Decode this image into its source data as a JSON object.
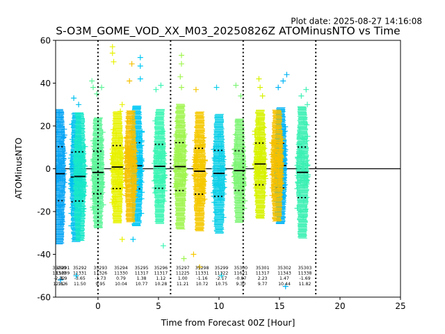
{
  "chart_data": {
    "type": "scatter",
    "plot_date": "Plot date: 2025-08-27 14:16:08",
    "title": "S-O3M_GOME_VOD_XX_M03_20250826Z ATOMinusNTO vs Time",
    "xlabel": "Time from Forecast 00Z [Hour]",
    "ylabel": "ATOMinusNTO",
    "xlim": [
      -3.5,
      25
    ],
    "ylim": [
      -60,
      60
    ],
    "xticks": [
      0,
      5,
      10,
      15,
      20,
      25
    ],
    "yticks": [
      -60,
      -40,
      -20,
      0,
      20,
      40,
      60
    ],
    "grid": false,
    "zero_line": 0,
    "vertical_dotted_lines": [
      0,
      6,
      12,
      18
    ],
    "marker": "+",
    "orbits": [
      {
        "x": -3.2,
        "color": "#0aa6f5",
        "lo": -56,
        "hi": 28,
        "mean": -2.32,
        "std": 12.62,
        "orbit": "35290",
        "n": "11349",
        "label": [
          "35290",
          "11349",
          "-2.32",
          "12.62"
        ],
        "label_x": -3.2,
        "outliers": [
          [
            -3.2,
            26
          ],
          [
            -3.3,
            22
          ],
          [
            -3.1,
            -52
          ]
        ]
      },
      {
        "x": -1.8,
        "color": "#00c0f0",
        "lo": -59,
        "hi": 33,
        "mean": -3.9,
        "std": 11.6,
        "label": [
          "35291",
          "11339",
          "-3.9",
          "11.6"
        ],
        "label_x": -2.9,
        "outliers": [
          [
            -2.0,
            33
          ],
          [
            -1.6,
            30
          ],
          [
            -1.8,
            -50
          ]
        ]
      },
      {
        "x": -1.5,
        "color": "#18e8c8",
        "lo": -56,
        "hi": 30,
        "mean": -3.6,
        "std": 11.5,
        "label": [
          "35292",
          "11331",
          "-3.65",
          "11.50"
        ],
        "label_x": -1.5,
        "outliers": []
      },
      {
        "x": 0.0,
        "color": "#5ef59a",
        "lo": -40,
        "hi": 41,
        "mean": -1.73,
        "std": 9.95,
        "label": [
          "35293",
          "11326",
          "-1.73",
          "9.95"
        ],
        "label_x": 0.2,
        "outliers": [
          [
            -0.5,
            41
          ],
          [
            -0.4,
            38
          ],
          [
            0.3,
            38
          ],
          [
            -0.1,
            35
          ]
        ]
      },
      {
        "x": 1.6,
        "color": "#e8f200",
        "lo": -33,
        "hi": 57,
        "mean": 0.79,
        "std": 10.04,
        "label": [
          "35294",
          "11330",
          "0.79",
          "10.04"
        ],
        "label_x": 1.9,
        "outliers": [
          [
            1.2,
            57
          ],
          [
            1.2,
            54
          ],
          [
            1.3,
            50
          ],
          [
            2.0,
            30
          ],
          [
            2.0,
            -33
          ]
        ]
      },
      {
        "x": 3.2,
        "color": "#00c8f5",
        "lo": -34,
        "hi": 52,
        "mean": 1.38,
        "std": 10.77,
        "label": [
          "35295",
          "11317",
          "1.38",
          "10.77"
        ],
        "label_x": 3.6,
        "outliers": [
          [
            3.5,
            52
          ],
          [
            3.5,
            48
          ],
          [
            3.5,
            42
          ],
          [
            2.9,
            -33
          ]
        ]
      },
      {
        "x": 2.7,
        "color": "#f5c000",
        "lo": -25,
        "hi": 49,
        "mean": 1.2,
        "std": 10.0,
        "label": [],
        "label_x": 2.7,
        "outliers": [
          [
            2.8,
            49
          ],
          [
            2.6,
            41
          ]
        ]
      },
      {
        "x": 5.1,
        "color": "#3cf5b4",
        "lo": -36,
        "hi": 39,
        "mean": 1.12,
        "std": 10.28,
        "label": [
          "35296",
          "11317",
          "1.12",
          "10.28"
        ],
        "label_x": 5.2,
        "outliers": [
          [
            4.8,
            37
          ],
          [
            5.2,
            39
          ],
          [
            5.4,
            -36
          ]
        ]
      },
      {
        "x": 6.8,
        "color": "#a0f550",
        "lo": -47,
        "hi": 53,
        "mean": 1.0,
        "std": 11.21,
        "label": [
          "35297",
          "11225",
          "1.00",
          "11.21"
        ],
        "label_x": 7.0,
        "outliers": [
          [
            6.9,
            53
          ],
          [
            6.9,
            49
          ],
          [
            6.8,
            43
          ],
          [
            6.9,
            38
          ],
          [
            7.1,
            -42
          ]
        ]
      },
      {
        "x": 8.4,
        "color": "#f5c800",
        "lo": -50,
        "hi": 37,
        "mean": -1.16,
        "std": 10.72,
        "label": [
          "35298",
          "11331",
          "-1.16",
          "10.72"
        ],
        "label_x": 8.6,
        "outliers": [
          [
            8.1,
            37
          ],
          [
            7.9,
            -40
          ],
          [
            8.4,
            -46
          ]
        ]
      },
      {
        "x": 10.0,
        "color": "#10d0e8",
        "lo": -57,
        "hi": 39,
        "mean": -2.17,
        "std": 10.75,
        "label": [
          "35299",
          "11322",
          "-2.17",
          "10.75"
        ],
        "label_x": 10.2,
        "outliers": [
          [
            9.8,
            38
          ],
          [
            10.2,
            -50
          ]
        ]
      },
      {
        "x": 11.7,
        "color": "#80f578",
        "lo": -47,
        "hi": 39,
        "mean": -0.87,
        "std": 9.3,
        "label": [
          "35300",
          "11621",
          "-0.87",
          "9.30"
        ],
        "label_x": 11.8,
        "outliers": [
          [
            11.4,
            39
          ],
          [
            11.8,
            34
          ]
        ]
      },
      {
        "x": 13.4,
        "color": "#d8f200",
        "lo": -44,
        "hi": 42,
        "mean": 2.23,
        "std": 9.77,
        "label": [
          "35301",
          "11317",
          "2.23",
          "9.77"
        ],
        "label_x": 13.6,
        "outliers": [
          [
            13.3,
            42
          ],
          [
            13.4,
            38
          ],
          [
            13.6,
            34
          ]
        ]
      },
      {
        "x": 15.1,
        "color": "#00b4f5",
        "lo": -58,
        "hi": 44,
        "mean": 1.47,
        "std": 10.44,
        "label": [
          "35302",
          "11343",
          "1.47",
          "10.44"
        ],
        "label_x": 15.4,
        "outliers": [
          [
            15.6,
            44
          ],
          [
            15.3,
            41
          ],
          [
            14.9,
            38
          ],
          [
            15.5,
            -55
          ]
        ]
      },
      {
        "x": 14.8,
        "color": "#f5c000",
        "lo": -36,
        "hi": 40,
        "mean": 1.5,
        "std": 10.0,
        "label": [],
        "label_x": 14.8,
        "outliers": []
      },
      {
        "x": 16.9,
        "color": "#3cf0b4",
        "lo": -56,
        "hi": 37,
        "mean": -1.69,
        "std": 11.82,
        "label": [
          "35303",
          "11338",
          "-1.69",
          "11.82"
        ],
        "label_x": 17.1,
        "outliers": [
          [
            17.2,
            37
          ],
          [
            16.8,
            34
          ],
          [
            17.3,
            30
          ]
        ]
      }
    ]
  }
}
